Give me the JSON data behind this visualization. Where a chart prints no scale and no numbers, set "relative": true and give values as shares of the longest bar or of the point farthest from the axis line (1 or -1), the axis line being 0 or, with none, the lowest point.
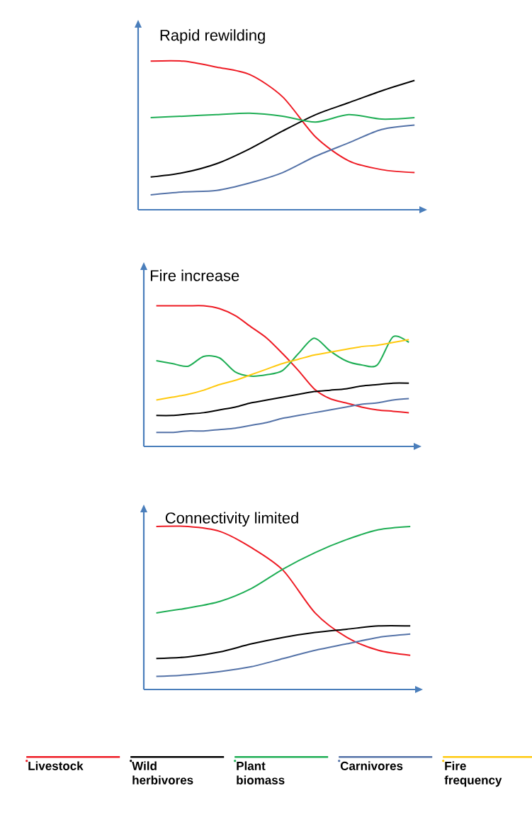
{
  "chart_data": [
    {
      "type": "line",
      "title": "Rapid rewilding",
      "relative": true,
      "categories": [
        null,
        null,
        null,
        null,
        null,
        null,
        null,
        null,
        null
      ],
      "series": [
        {
          "color": "#ee1c25",
          "values": [
            1,
            1,
            0.96,
            0.91,
            0.76,
            0.49,
            0.33,
            0.27,
            0.25
          ]
        },
        {
          "color": "#000000",
          "values": [
            0.22,
            0.25,
            0.31,
            0.41,
            0.53,
            0.64,
            0.72,
            0.8,
            0.87
          ]
        },
        {
          "color": "#1fae55",
          "values": [
            0.62,
            0.63,
            0.64,
            0.65,
            0.63,
            0.59,
            0.64,
            0.61,
            0.62
          ]
        },
        {
          "color": "#5573a8",
          "values": [
            0.1,
            0.12,
            0.13,
            0.18,
            0.25,
            0.36,
            0.45,
            0.54,
            0.57
          ]
        }
      ]
    },
    {
      "type": "line",
      "title": "Fire increase",
      "relative": true,
      "legend": "bottom",
      "categories": [
        null,
        null,
        null,
        null,
        null,
        null,
        null,
        null,
        null,
        null,
        null,
        null,
        null,
        null,
        null,
        null,
        null
      ],
      "series": [
        {
          "name": "Livestock",
          "color": "#ee1c25",
          "values": [
            1,
            1,
            1,
            1,
            0.98,
            0.93,
            0.85,
            0.77,
            0.66,
            0.54,
            0.41,
            0.34,
            0.31,
            0.28,
            0.26,
            0.25,
            0.24
          ]
        },
        {
          "name": "Wild herbivores",
          "color": "#000000",
          "values": [
            0.22,
            0.22,
            0.23,
            0.24,
            0.26,
            0.28,
            0.31,
            0.33,
            0.35,
            0.37,
            0.39,
            0.4,
            0.41,
            0.43,
            0.44,
            0.45,
            0.45
          ]
        },
        {
          "name": "Plant biomass",
          "color": "#1fae55",
          "values": [
            0.61,
            0.59,
            0.57,
            0.64,
            0.63,
            0.53,
            0.5,
            0.51,
            0.54,
            0.66,
            0.77,
            0.68,
            0.61,
            0.58,
            0.58,
            0.78,
            0.74
          ]
        },
        {
          "name": "Carnivores",
          "color": "#5573a8",
          "values": [
            0.1,
            0.1,
            0.11,
            0.11,
            0.12,
            0.13,
            0.15,
            0.17,
            0.2,
            0.22,
            0.24,
            0.26,
            0.28,
            0.3,
            0.31,
            0.33,
            0.34
          ]
        },
        {
          "name": "Fire frequency",
          "color": "#ffc90e",
          "values": [
            0.33,
            0.35,
            0.37,
            0.4,
            0.44,
            0.47,
            0.51,
            0.55,
            0.59,
            0.62,
            0.65,
            0.67,
            0.69,
            0.71,
            0.72,
            0.74,
            0.76
          ]
        }
      ]
    },
    {
      "type": "line",
      "title": "Connectivity limited",
      "relative": true,
      "categories": [
        null,
        null,
        null,
        null,
        null,
        null,
        null,
        null,
        null
      ],
      "series": [
        {
          "color": "#ee1c25",
          "values": [
            1,
            1,
            0.97,
            0.87,
            0.73,
            0.47,
            0.32,
            0.24,
            0.21
          ]
        },
        {
          "color": "#000000",
          "values": [
            0.19,
            0.2,
            0.23,
            0.28,
            0.32,
            0.35,
            0.37,
            0.39,
            0.39
          ]
        },
        {
          "color": "#1fae55",
          "values": [
            0.47,
            0.5,
            0.54,
            0.62,
            0.74,
            0.84,
            0.92,
            0.98,
            1
          ]
        },
        {
          "color": "#5573a8",
          "values": [
            0.08,
            0.09,
            0.11,
            0.14,
            0.19,
            0.24,
            0.28,
            0.32,
            0.34
          ]
        }
      ]
    }
  ]
}
